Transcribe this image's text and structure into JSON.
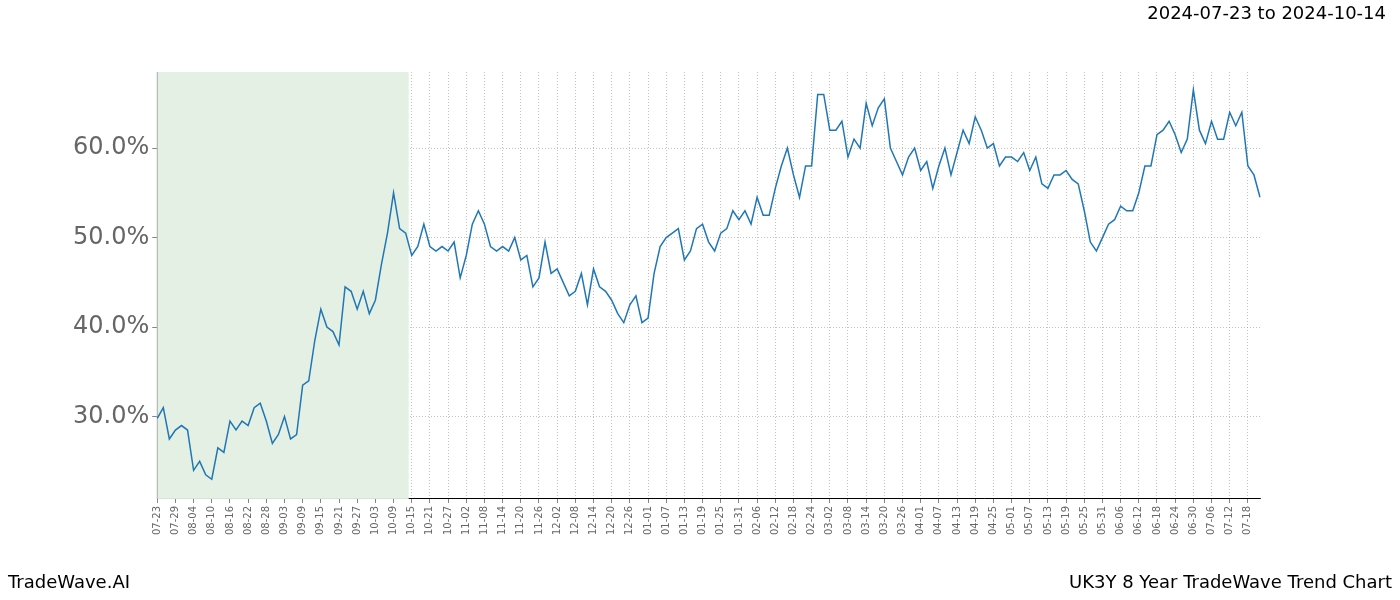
{
  "chart_data": {
    "type": "line",
    "title": "2024-07-23 to 2024-10-14",
    "footer": {
      "left": "TradeWave.AI",
      "right": "UK3Y 8 Year TradeWave Trend Chart"
    },
    "categories": [
      "07-23",
      null,
      null,
      "07-29",
      null,
      null,
      "08-04",
      null,
      null,
      "08-10",
      null,
      null,
      "08-16",
      null,
      null,
      "08-22",
      null,
      null,
      "08-28",
      null,
      null,
      "09-03",
      null,
      null,
      "09-09",
      null,
      null,
      "09-15",
      null,
      null,
      "09-21",
      null,
      null,
      "09-27",
      null,
      null,
      "10-03",
      null,
      null,
      "10-09",
      null,
      null,
      "10-15",
      null,
      null,
      "10-21",
      null,
      null,
      "10-27",
      null,
      null,
      "11-02",
      null,
      null,
      "11-08",
      null,
      null,
      "11-14",
      null,
      null,
      "11-20",
      null,
      null,
      "11-26",
      null,
      null,
      "12-02",
      null,
      null,
      "12-08",
      null,
      null,
      "12-14",
      null,
      null,
      "12-20",
      null,
      null,
      "12-26",
      null,
      null,
      "01-01",
      null,
      null,
      "01-07",
      null,
      null,
      "01-13",
      null,
      null,
      "01-19",
      null,
      null,
      "01-25",
      null,
      null,
      "01-31",
      null,
      null,
      "02-06",
      null,
      null,
      "02-12",
      null,
      null,
      "02-18",
      null,
      null,
      "02-24",
      null,
      null,
      "03-02",
      null,
      null,
      "03-08",
      null,
      null,
      "03-14",
      null,
      null,
      "03-20",
      null,
      null,
      "03-26",
      null,
      null,
      "04-01",
      null,
      null,
      "04-07",
      null,
      null,
      "04-13",
      null,
      null,
      "04-19",
      null,
      null,
      "04-25",
      null,
      null,
      "05-01",
      null,
      null,
      "05-07",
      null,
      null,
      "05-13",
      null,
      null,
      "05-19",
      null,
      null,
      "05-25",
      null,
      null,
      "05-31",
      null,
      null,
      "06-06",
      null,
      null,
      "06-12",
      null,
      null,
      "06-18",
      null,
      null,
      "06-24",
      null,
      null,
      "06-30",
      null,
      null,
      "07-06",
      null,
      null,
      "07-12",
      null,
      null,
      "07-18",
      null,
      null
    ],
    "values": [
      29.8,
      31,
      27.5,
      28.5,
      29,
      28.5,
      24,
      25,
      23.5,
      23,
      26.5,
      26,
      29.5,
      28.5,
      29.5,
      29,
      31,
      31.5,
      29.5,
      27,
      28,
      30,
      27.5,
      28,
      33.5,
      34,
      38.5,
      42,
      40,
      39.5,
      38,
      44.5,
      44,
      42,
      44,
      41.5,
      43,
      47,
      50.5,
      55,
      51,
      50.5,
      48,
      49,
      51.5,
      49,
      48.5,
      49,
      48.5,
      49.5,
      45.5,
      48,
      51.5,
      53,
      51.5,
      49,
      48.5,
      49,
      48.5,
      50,
      47.5,
      48,
      44.5,
      45.5,
      49.5,
      46,
      46.5,
      45,
      43.5,
      44,
      46,
      42.5,
      46.5,
      44.5,
      44,
      43,
      41.5,
      40.5,
      42.5,
      43.5,
      40.5,
      41,
      46,
      49,
      50,
      50.5,
      51,
      47.5,
      48.5,
      51,
      51.5,
      49.5,
      48.5,
      50.5,
      51,
      53,
      52,
      53,
      51.5,
      54.5,
      52.5,
      52.5,
      55.5,
      58,
      60,
      57,
      54.5,
      58,
      58,
      66,
      66,
      62,
      62,
      63,
      59,
      61,
      60,
      65,
      62.5,
      64.5,
      65.5,
      60,
      58.5,
      57,
      59,
      60,
      57.5,
      58.5,
      55.5,
      58,
      60,
      57,
      59.5,
      62,
      60.5,
      63.5,
      62,
      60,
      60.5,
      58,
      59,
      59,
      58.5,
      59.5,
      57.5,
      59,
      56,
      55.5,
      57,
      57,
      57.5,
      56.5,
      56,
      53,
      49.5,
      48.5,
      50,
      51.5,
      52,
      53.5,
      53,
      53,
      55,
      58,
      58,
      61.5,
      62,
      63,
      61.5,
      59.5,
      61,
      66.5,
      62,
      60.5,
      63,
      61,
      61,
      64,
      62.5,
      64,
      58,
      57,
      54.5
    ],
    "color": "#1f77b4",
    "highlight": {
      "from": "07-23",
      "to": "10-14",
      "color": "#e5f0e5"
    },
    "ylim": [
      20.8,
      68.5
    ],
    "yticks": [
      {
        "value": 30,
        "label": "30.0%"
      },
      {
        "value": 40,
        "label": "40.0%"
      },
      {
        "value": 50,
        "label": "50.0%"
      },
      {
        "value": 60,
        "label": "60.0%"
      }
    ],
    "grid": true
  }
}
